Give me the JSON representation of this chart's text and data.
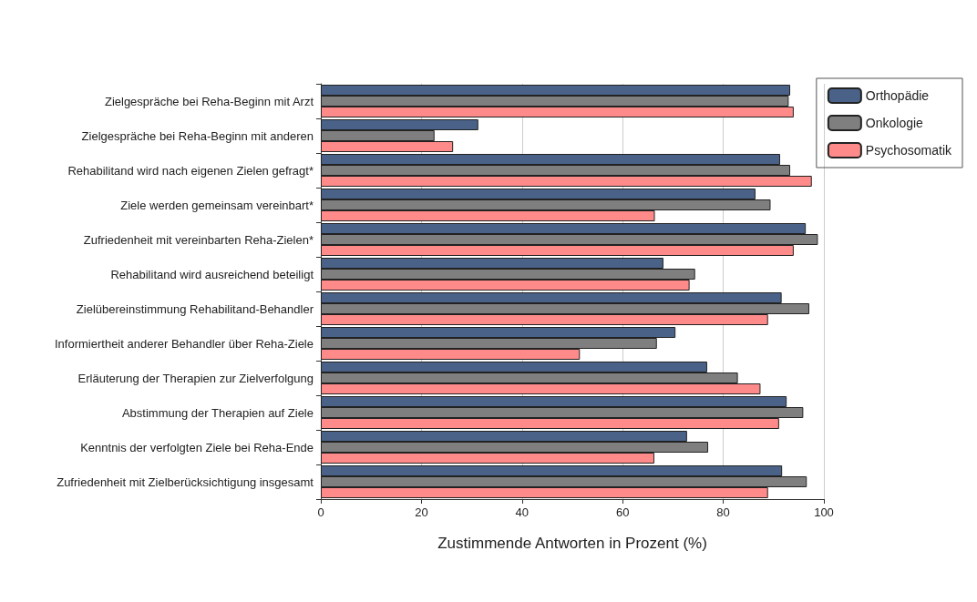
{
  "chart_data": {
    "type": "bar",
    "orientation": "horizontal",
    "xlabel": "Zustimmende Antworten in Prozent (%)",
    "categories": [
      "Zielgespräche bei Reha-Beginn mit Arzt",
      "Zielgespräche bei Reha-Beginn mit anderen",
      "Rehabilitand wird nach eigenen Zielen gefragt*",
      "Ziele werden gemeinsam vereinbart*",
      "Zufriedenheit mit vereinbarten Reha-Zielen*",
      "Rehabilitand wird ausreichend beteiligt",
      "Zielübereinstimmung Rehabilitand-Behandler",
      "Informiertheit anderer Behandler über Reha-Ziele",
      "Erläuterung der Therapien zur Zielverfolgung",
      "Abstimmung der Therapien auf Ziele",
      "Kenntnis der verfolgten Ziele bei Reha-Ende",
      "Zufriedenheit mit Zielberücksichtigung insgesamt"
    ],
    "series": [
      {
        "name": "Orthopädie",
        "color": "#4a6287",
        "values": [
          93.3,
          31.3,
          91.3,
          86.4,
          96.4,
          68.1,
          91.6,
          70.5,
          76.8,
          92.6,
          72.8,
          91.7
        ]
      },
      {
        "name": "Onkologie",
        "color": "#7f7f7f",
        "values": [
          93.0,
          22.6,
          93.3,
          89.4,
          98.8,
          74.4,
          97.1,
          66.8,
          82.9,
          95.9,
          77.0,
          96.6
        ]
      },
      {
        "name": "Psychosomatik",
        "color": "#ff8a8a",
        "values": [
          94.0,
          26.3,
          97.6,
          66.4,
          94.0,
          73.3,
          88.9,
          51.5,
          87.4,
          91.1,
          66.3,
          88.9
        ]
      }
    ],
    "xlim": [
      0,
      100
    ],
    "xticks": [
      0,
      20,
      40,
      60,
      80,
      100
    ],
    "grid": "x",
    "legend": "top right"
  }
}
